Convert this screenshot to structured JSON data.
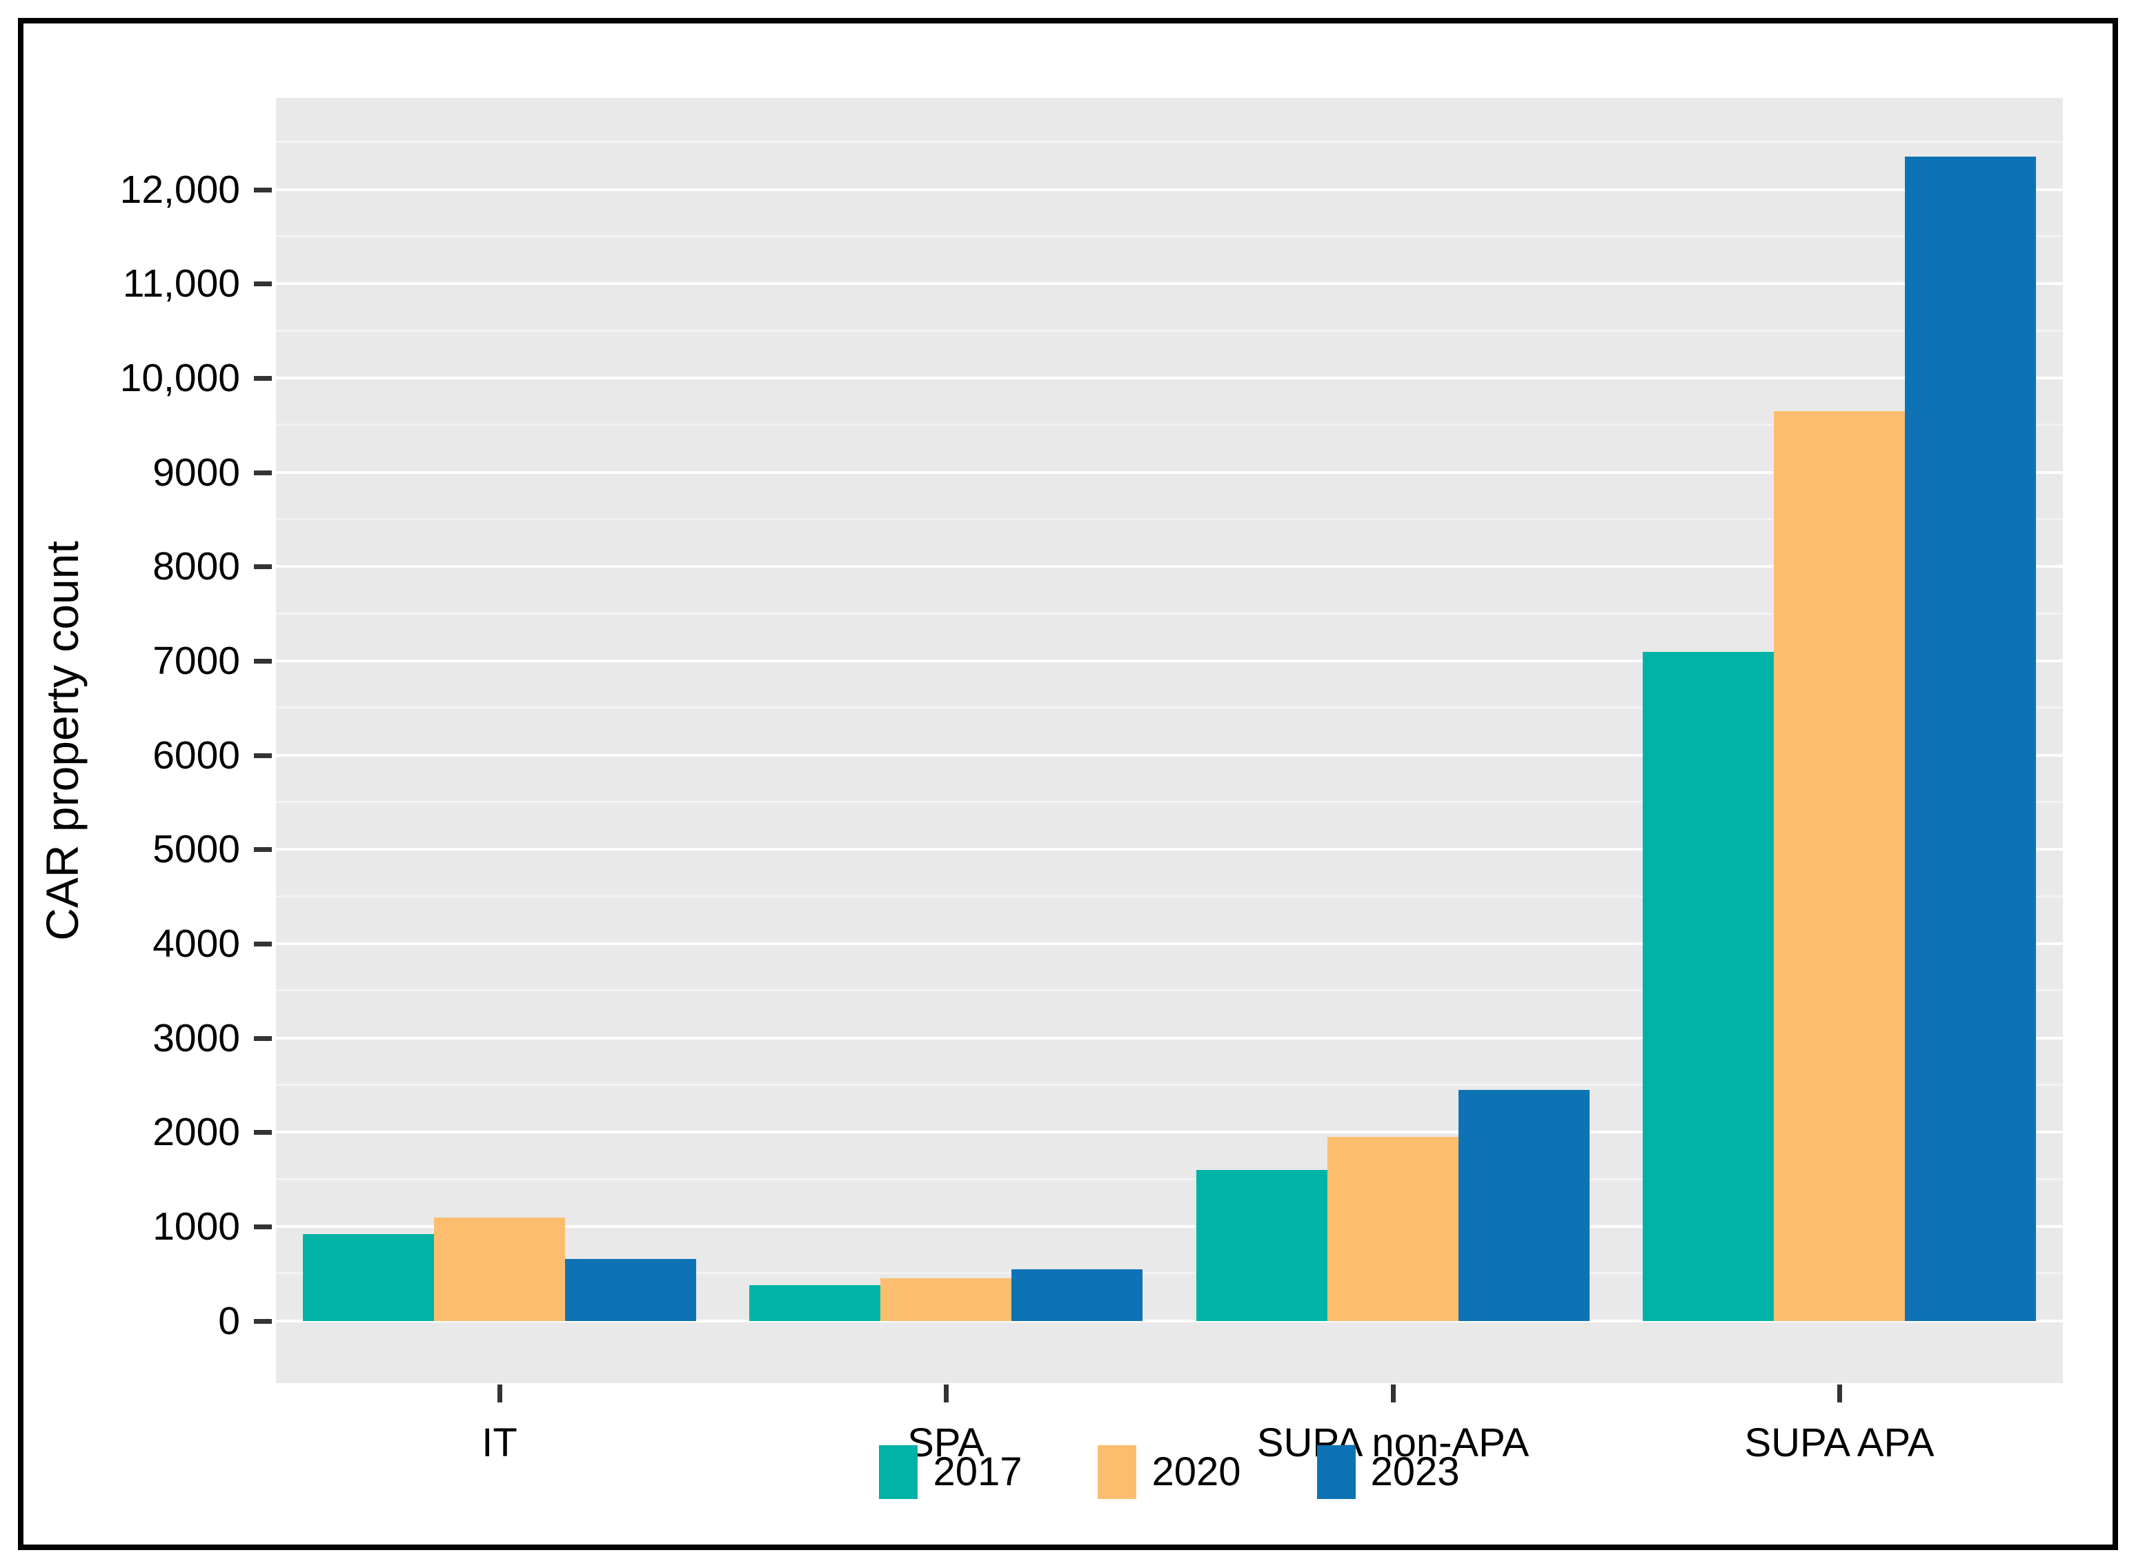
{
  "figure": {
    "y_axis_title": "CAR property count"
  },
  "chart_data": {
    "type": "bar",
    "title": "",
    "xlabel": "",
    "ylabel": "CAR property count",
    "categories": [
      "IT",
      "SPA",
      "SUPA non-APA",
      "SUPA APA"
    ],
    "series": [
      {
        "name": "2017",
        "color": "#00b3a6",
        "values": [
          920,
          380,
          1600,
          7100
        ]
      },
      {
        "name": "2020",
        "color": "#fcbe6e",
        "values": [
          1100,
          450,
          1950,
          9650
        ]
      },
      {
        "name": "2023",
        "color": "#0d73b5",
        "values": [
          660,
          550,
          2450,
          12350
        ]
      }
    ],
    "y_ticks": [
      {
        "value": 0,
        "label": "0"
      },
      {
        "value": 1000,
        "label": "1000"
      },
      {
        "value": 2000,
        "label": "2000"
      },
      {
        "value": 3000,
        "label": "3000"
      },
      {
        "value": 4000,
        "label": "4000"
      },
      {
        "value": 5000,
        "label": "5000"
      },
      {
        "value": 6000,
        "label": "6000"
      },
      {
        "value": 7000,
        "label": "7000"
      },
      {
        "value": 8000,
        "label": "8000"
      },
      {
        "value": 9000,
        "label": "9000"
      },
      {
        "value": 10000,
        "label": "10,000"
      },
      {
        "value": 11000,
        "label": "11,000"
      },
      {
        "value": 12000,
        "label": "12,000"
      }
    ],
    "y_minor_step": 500,
    "y_minor_max": 12500,
    "ylim_display": [
      -660,
      12970
    ],
    "grid": "major-and-minor",
    "legend_position": "bottom",
    "legend_entries": [
      {
        "label": "2017",
        "color": "#00b3a6"
      },
      {
        "label": "2020",
        "color": "#fcbe6e"
      },
      {
        "label": "2023",
        "color": "#0d73b5"
      }
    ]
  },
  "style_colors": {
    "panel_background": "#e9e9e9",
    "major_gridline": "#ffffff",
    "minor_gridline": "#f3f3f3",
    "tick_mark": "#333333",
    "text": "#000000",
    "figure_border": "#000000",
    "page_background": "#ffffff"
  }
}
